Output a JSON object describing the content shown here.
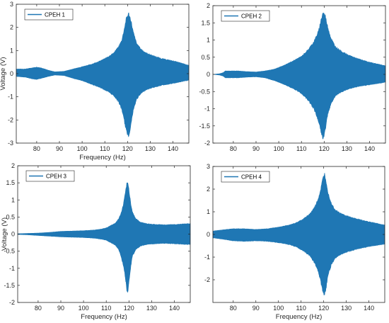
{
  "colors": {
    "signal": "#1f77b4",
    "axis": "#262626",
    "background": "#ffffff"
  },
  "chart_data": [
    {
      "type": "area",
      "legend": [
        "CPEH 1"
      ],
      "legend_position": "top-left",
      "xlabel": "Frequency (Hz)",
      "ylabel": "Voltage (V)",
      "xlim": [
        71,
        147
      ],
      "ylim": [
        -3,
        3
      ],
      "xticks": [
        80,
        90,
        100,
        110,
        120,
        130,
        140
      ],
      "yticks": [
        -3,
        -2,
        -1,
        0,
        1,
        2,
        3
      ],
      "grid": false,
      "series": [
        {
          "name": "CPEH 1",
          "x": [
            71,
            75,
            78,
            80,
            82,
            85,
            88,
            92,
            96,
            100,
            104,
            108,
            111,
            114,
            116,
            117.5,
            118.5,
            119.5,
            120.5,
            121.5,
            122.5,
            124,
            126,
            128,
            131,
            135,
            140,
            145,
            147
          ],
          "upper": [
            0.2,
            0.2,
            0.25,
            0.28,
            0.25,
            0.15,
            0.08,
            0.1,
            0.2,
            0.3,
            0.4,
            0.55,
            0.7,
            0.9,
            1.15,
            1.45,
            1.9,
            2.4,
            2.6,
            2.3,
            1.8,
            1.3,
            1.05,
            0.9,
            0.78,
            0.65,
            0.55,
            0.42,
            0.35
          ],
          "lower": [
            -0.12,
            -0.15,
            -0.22,
            -0.25,
            -0.2,
            -0.12,
            -0.06,
            -0.08,
            -0.2,
            -0.3,
            -0.45,
            -0.6,
            -0.75,
            -0.95,
            -1.2,
            -1.55,
            -2.0,
            -2.5,
            -2.7,
            -2.2,
            -1.6,
            -1.1,
            -0.85,
            -0.7,
            -0.6,
            -0.5,
            -0.42,
            -0.32,
            -0.28
          ]
        }
      ]
    },
    {
      "type": "area",
      "legend": [
        "CPEH 2"
      ],
      "legend_position": "top-left",
      "xlabel": "",
      "ylabel": "",
      "xlim": [
        71,
        147
      ],
      "ylim": [
        -2,
        2
      ],
      "xticks": [
        80,
        90,
        100,
        110,
        120,
        130,
        140
      ],
      "yticks": [
        -2,
        -1.5,
        -1,
        -0.5,
        0,
        0.5,
        1,
        1.5,
        2
      ],
      "grid": false,
      "series": [
        {
          "name": "CPEH 2",
          "x": [
            71,
            74,
            75.5,
            76.5,
            78,
            82,
            86,
            90,
            94,
            98,
            102,
            106,
            110,
            113,
            115.5,
            117.5,
            118.5,
            119.5,
            120.5,
            121.5,
            123,
            125,
            128,
            131,
            135,
            140,
            145,
            147
          ],
          "upper": [
            0.0,
            0.02,
            0.05,
            0.1,
            0.1,
            0.1,
            0.08,
            0.07,
            0.1,
            0.15,
            0.25,
            0.38,
            0.52,
            0.72,
            0.95,
            1.25,
            1.55,
            1.8,
            1.7,
            1.4,
            1.05,
            0.8,
            0.65,
            0.55,
            0.45,
            0.35,
            0.28,
            0.25
          ],
          "lower": [
            0.0,
            -0.02,
            -0.05,
            -0.1,
            -0.1,
            -0.1,
            -0.08,
            -0.07,
            -0.1,
            -0.18,
            -0.28,
            -0.4,
            -0.55,
            -0.75,
            -1.0,
            -1.35,
            -1.65,
            -1.9,
            -1.6,
            -1.2,
            -0.85,
            -0.62,
            -0.5,
            -0.42,
            -0.35,
            -0.3,
            -0.25,
            -0.22
          ]
        }
      ]
    },
    {
      "type": "area",
      "legend": [
        "CPEH 3"
      ],
      "legend_position": "top-left",
      "xlabel": "Frequency (Hz)",
      "ylabel": "Voltage (V)",
      "xlim": [
        71,
        147
      ],
      "ylim": [
        -2,
        2
      ],
      "xticks": [
        80,
        90,
        100,
        110,
        120,
        130,
        140
      ],
      "yticks": [
        -2,
        -1.5,
        -1,
        -0.5,
        0,
        0.5,
        1,
        1.5,
        2
      ],
      "grid": false,
      "series": [
        {
          "name": "CPEH 3",
          "x": [
            71,
            75,
            80,
            85,
            90,
            95,
            100,
            105,
            108,
            110,
            112,
            114,
            115.5,
            116.5,
            117.5,
            118.3,
            119,
            119.5,
            120,
            120.8,
            121.5,
            123,
            125,
            128,
            132,
            136,
            140,
            145,
            147
          ],
          "upper": [
            0.01,
            0.02,
            0.03,
            0.05,
            0.08,
            0.09,
            0.1,
            0.12,
            0.15,
            0.18,
            0.25,
            0.32,
            0.45,
            0.6,
            0.85,
            1.15,
            1.45,
            1.5,
            1.3,
            0.9,
            0.65,
            0.45,
            0.35,
            0.3,
            0.28,
            0.27,
            0.28,
            0.3,
            0.3
          ],
          "lower": [
            -0.01,
            -0.02,
            -0.04,
            -0.06,
            -0.08,
            -0.09,
            -0.1,
            -0.12,
            -0.15,
            -0.18,
            -0.25,
            -0.32,
            -0.45,
            -0.65,
            -0.9,
            -1.2,
            -1.6,
            -1.68,
            -1.4,
            -0.95,
            -0.65,
            -0.45,
            -0.35,
            -0.3,
            -0.28,
            -0.27,
            -0.28,
            -0.3,
            -0.3
          ]
        }
      ]
    },
    {
      "type": "area",
      "legend": [
        "CPEH 4"
      ],
      "legend_position": "top-left",
      "xlabel": "Frequency (Hz)",
      "ylabel": "",
      "xlim": [
        71,
        147
      ],
      "ylim": [
        -3,
        3
      ],
      "xticks": [
        80,
        90,
        100,
        110,
        120,
        130,
        140
      ],
      "yticks": [
        -2,
        -1,
        0,
        1,
        2,
        3
      ],
      "grid": false,
      "series": [
        {
          "name": "CPEH 4",
          "x": [
            71,
            75,
            80,
            85,
            90,
            95,
            100,
            105,
            108,
            111,
            114,
            116,
            117.5,
            118.5,
            119.5,
            120.3,
            121,
            122,
            123.5,
            125,
            127,
            130,
            134,
            138,
            142,
            145,
            147
          ],
          "upper": [
            0.15,
            0.2,
            0.25,
            0.25,
            0.22,
            0.25,
            0.32,
            0.42,
            0.52,
            0.68,
            0.92,
            1.2,
            1.55,
            1.9,
            2.4,
            2.7,
            2.4,
            1.8,
            1.35,
            1.1,
            0.95,
            0.82,
            0.7,
            0.6,
            0.52,
            0.45,
            0.42
          ],
          "lower": [
            -0.15,
            -0.2,
            -0.28,
            -0.3,
            -0.28,
            -0.3,
            -0.36,
            -0.45,
            -0.55,
            -0.72,
            -0.95,
            -1.25,
            -1.6,
            -2.0,
            -2.45,
            -2.75,
            -2.4,
            -1.75,
            -1.3,
            -1.05,
            -0.9,
            -0.78,
            -0.66,
            -0.57,
            -0.5,
            -0.45,
            -0.42
          ]
        }
      ]
    }
  ]
}
